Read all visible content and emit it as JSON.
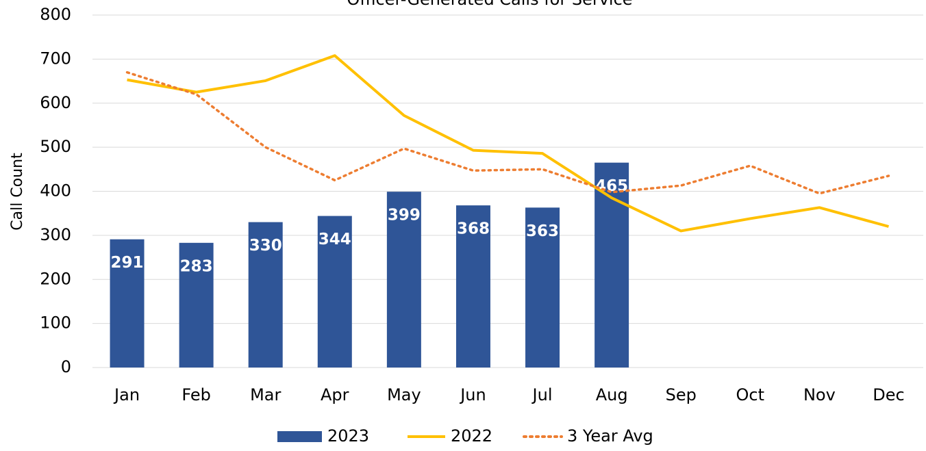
{
  "chart_data": {
    "type": "combo",
    "title": "Officer-Generated Calls for Service",
    "y_label": "Call Count",
    "categories": [
      "Jan",
      "Feb",
      "Mar",
      "Apr",
      "May",
      "Jun",
      "Jul",
      "Aug",
      "Sep",
      "Oct",
      "Nov",
      "Dec"
    ],
    "series": [
      {
        "name": "2023",
        "type": "bar",
        "color": "#2f5597",
        "values": [
          291,
          283,
          330,
          344,
          399,
          368,
          363,
          465,
          null,
          null,
          null,
          null
        ]
      },
      {
        "name": "2022",
        "type": "line",
        "style": "solid",
        "color": "#ffc000",
        "values": [
          653,
          625,
          651,
          708,
          572,
          493,
          486,
          385,
          310,
          338,
          363,
          320
        ]
      },
      {
        "name": "3 Year Avg",
        "type": "line",
        "style": "dotted",
        "color": "#ed7d31",
        "values": [
          670,
          620,
          500,
          425,
          497,
          447,
          450,
          398,
          413,
          458,
          395,
          435
        ]
      }
    ],
    "ylim": [
      0,
      800
    ],
    "yticks": [
      0,
      100,
      200,
      300,
      400,
      500,
      600,
      700,
      800
    ],
    "grid": true,
    "legend": "bottom"
  }
}
